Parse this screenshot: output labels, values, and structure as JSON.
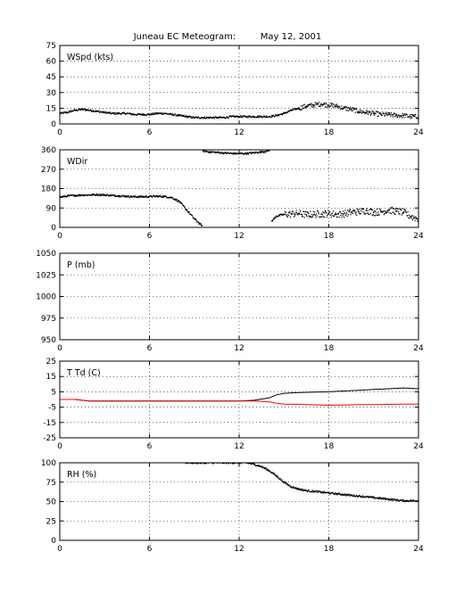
{
  "figure": {
    "title": "Juneau EC Meteogram:",
    "date": "May 12, 2001"
  },
  "chart_data": [
    {
      "type": "scatter",
      "label": "WSpd (kts)",
      "xlim": [
        0,
        24
      ],
      "ylim": [
        0,
        75
      ],
      "xticks": [
        0,
        6,
        12,
        18,
        24
      ],
      "yticks": [
        0,
        15,
        30,
        45,
        60,
        75
      ],
      "grid": true,
      "series": [
        {
          "color": "#000000",
          "style": "dots",
          "x": [
            0,
            0.5,
            1,
            1.5,
            2,
            2.5,
            3,
            3.5,
            4,
            4.5,
            5,
            5.5,
            6,
            6.5,
            7,
            7.5,
            8,
            8.5,
            9,
            9.5,
            10,
            10.5,
            11,
            11.5,
            12,
            12.5,
            13,
            13.5,
            14,
            14.5,
            15,
            15.5,
            16,
            16.5,
            17,
            17.5,
            18,
            18.5,
            19,
            19.5,
            20,
            20.5,
            21,
            21.5,
            22,
            22.5,
            23,
            23.5,
            24
          ],
          "y": [
            10,
            11,
            13,
            14,
            13,
            12,
            11,
            10,
            10,
            10,
            9,
            9,
            9,
            10,
            10,
            9,
            8,
            7,
            6,
            6,
            6,
            6,
            6,
            7,
            7,
            7,
            7,
            7,
            7,
            8,
            10,
            13,
            15,
            17,
            18,
            19,
            18,
            17,
            15,
            14,
            12,
            11,
            10,
            9,
            9,
            8,
            8,
            7,
            7
          ]
        }
      ]
    },
    {
      "type": "scatter",
      "label": "WDir",
      "xlim": [
        0,
        24
      ],
      "ylim": [
        0,
        360
      ],
      "xticks": [
        0,
        6,
        12,
        18,
        24
      ],
      "yticks": [
        0,
        90,
        180,
        270,
        360
      ],
      "grid": true,
      "series": [
        {
          "color": "#000000",
          "style": "dots",
          "x": [
            0,
            0.5,
            1,
            1.5,
            2,
            2.5,
            3,
            3.5,
            4,
            4.5,
            5,
            5.5,
            6,
            6.5,
            7,
            7.5,
            8,
            8.5,
            9,
            9.5
          ],
          "y": [
            140,
            145,
            148,
            150,
            150,
            152,
            150,
            148,
            146,
            144,
            142,
            142,
            143,
            144,
            143,
            138,
            120,
            80,
            40,
            8
          ]
        },
        {
          "color": "#000000",
          "style": "dots",
          "x": [
            9.6,
            10,
            10.5,
            11,
            11.5,
            12,
            12.5,
            13,
            13.5,
            14
          ],
          "y": [
            355,
            350,
            348,
            345,
            343,
            342,
            343,
            346,
            350,
            356
          ]
        },
        {
          "color": "#000000",
          "style": "dots",
          "x": [
            14.2,
            14.5,
            15,
            15.5,
            16,
            16.5,
            17,
            17.5,
            18,
            18.5,
            19,
            19.5,
            20,
            20.5,
            21,
            21.5,
            22,
            22.5,
            23,
            23.5,
            24
          ],
          "y": [
            30,
            52,
            60,
            62,
            65,
            58,
            60,
            62,
            64,
            60,
            62,
            70,
            72,
            78,
            70,
            72,
            80,
            75,
            70,
            50,
            40
          ]
        }
      ]
    },
    {
      "type": "line",
      "label": "P (mb)",
      "xlim": [
        0,
        24
      ],
      "ylim": [
        950,
        1050
      ],
      "xticks": [
        0,
        6,
        12,
        18,
        24
      ],
      "yticks": [
        950,
        975,
        1000,
        1025,
        1050
      ],
      "grid": true,
      "series": []
    },
    {
      "type": "line",
      "label": "T Td (C)",
      "xlim": [
        0,
        24
      ],
      "ylim": [
        -25,
        25
      ],
      "xticks": [
        0,
        6,
        12,
        18,
        24
      ],
      "yticks": [
        -25,
        -15,
        -5,
        5,
        15,
        25
      ],
      "grid": true,
      "series": [
        {
          "name": "T",
          "color": "#000000",
          "style": "line",
          "x": [
            0,
            1,
            2,
            3,
            4,
            5,
            6,
            7,
            8,
            9,
            10,
            11,
            12,
            13,
            14,
            14.5,
            15,
            16,
            17,
            18,
            19,
            20,
            21,
            22,
            23,
            24
          ],
          "y": [
            0,
            0,
            -1,
            -1,
            -1,
            -1,
            -1,
            -1,
            -1,
            -1,
            -1,
            -1,
            -1,
            -0.5,
            1,
            3,
            4,
            4.5,
            4.8,
            5,
            5.5,
            6,
            6.5,
            7,
            7.5,
            7
          ]
        },
        {
          "name": "Td",
          "color": "#ff0000",
          "style": "line",
          "x": [
            0,
            1,
            2,
            3,
            4,
            5,
            6,
            7,
            8,
            9,
            10,
            11,
            12,
            13,
            14,
            14.5,
            15,
            16,
            17,
            18,
            19,
            20,
            21,
            22,
            23,
            24
          ],
          "y": [
            0,
            0,
            -1,
            -1,
            -1,
            -1,
            -1,
            -1,
            -1,
            -1,
            -1,
            -1,
            -1,
            -1,
            -1.5,
            -2.5,
            -3,
            -3.2,
            -3.5,
            -3.8,
            -3.6,
            -3.4,
            -3.3,
            -3.2,
            -3.1,
            -3
          ]
        }
      ]
    },
    {
      "type": "scatter",
      "label": "RH (%)",
      "xlim": [
        0,
        24
      ],
      "ylim": [
        0,
        100
      ],
      "xticks": [
        0,
        6,
        12,
        18,
        24
      ],
      "yticks": [
        0,
        25,
        50,
        75,
        100
      ],
      "grid": true,
      "series": [
        {
          "color": "#000000",
          "style": "dots",
          "x": [
            8.4,
            8.6,
            8.8,
            9,
            12.5,
            13,
            13.5,
            14,
            14.5,
            15,
            15.5,
            16,
            16.5,
            17,
            17.5,
            18,
            18.5,
            19,
            19.5,
            20,
            20.5,
            21,
            21.5,
            22,
            22.5,
            23,
            23.5,
            24
          ],
          "y": [
            100,
            100,
            100,
            100,
            100,
            98,
            95,
            90,
            83,
            75,
            69,
            66,
            64,
            63,
            62,
            61,
            60,
            59,
            58,
            57,
            56,
            55,
            54,
            53,
            52,
            51,
            51,
            51
          ]
        }
      ]
    }
  ]
}
